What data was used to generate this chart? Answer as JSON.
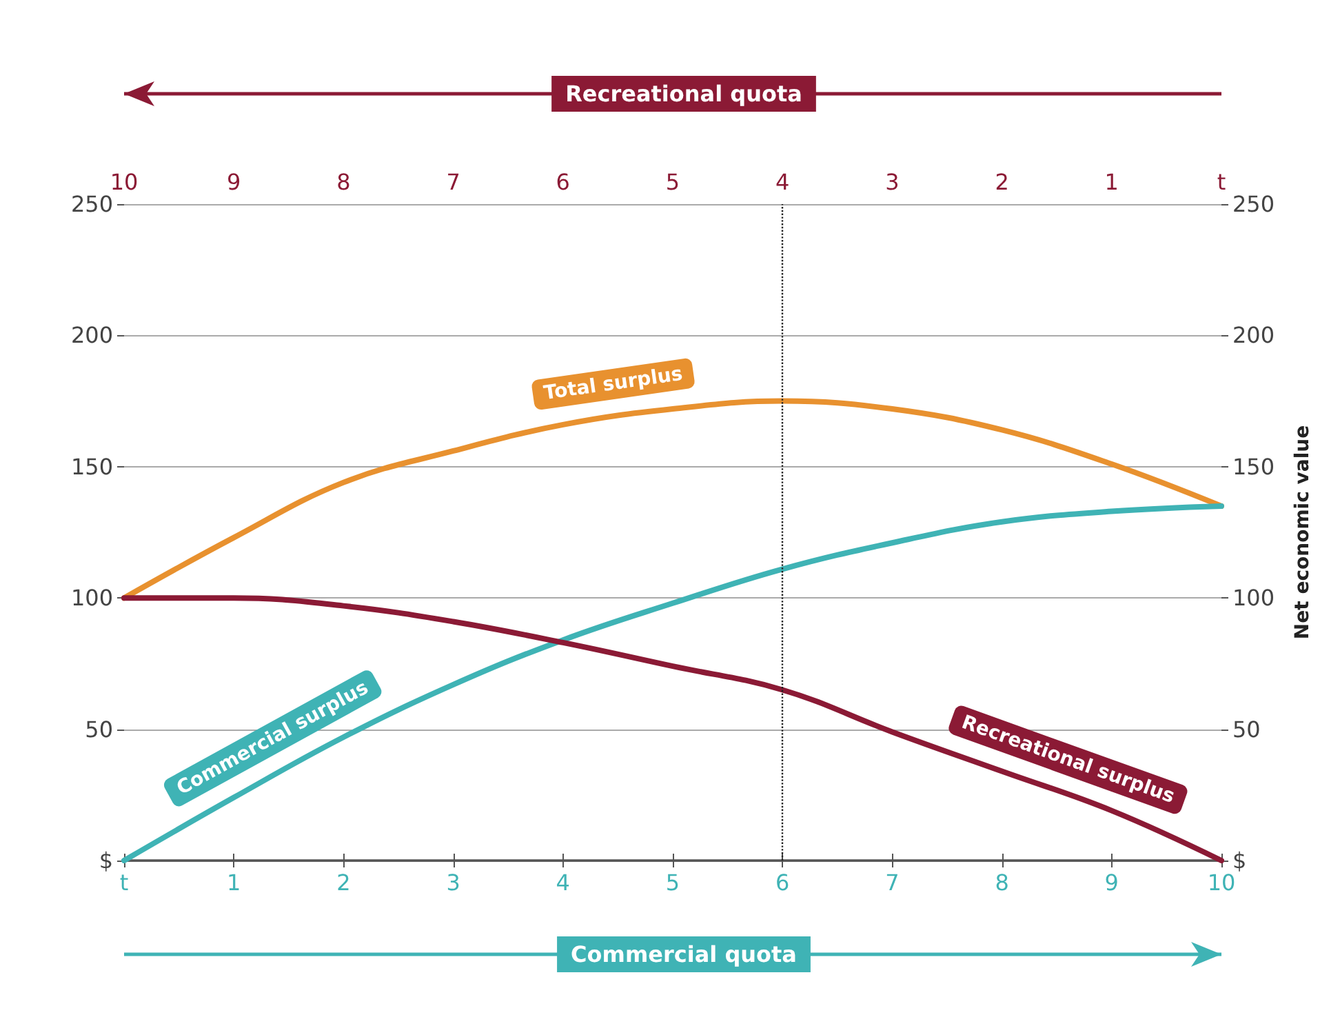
{
  "chart_data": {
    "type": "line",
    "xlabel": "Commercial quota",
    "x2label": "Recreational quota",
    "y2label": "Net economic value",
    "x": [
      0,
      1,
      2,
      3,
      4,
      5,
      6,
      7,
      8,
      9,
      10
    ],
    "series": [
      {
        "name": "Total surplus",
        "color": "#e8912f",
        "values": [
          100,
          123,
          144,
          156,
          166,
          172,
          175,
          172,
          164,
          151,
          135
        ]
      },
      {
        "name": "Commercial surplus",
        "color": "#3fb3b5",
        "values": [
          0,
          24,
          47,
          67,
          84,
          98,
          111,
          121,
          129,
          133,
          135
        ]
      },
      {
        "name": "Recreational surplus",
        "color": "#8b1a35",
        "values": [
          100,
          100,
          97,
          91,
          83,
          74,
          65,
          49,
          34,
          19,
          0
        ]
      }
    ],
    "xlim": [
      0,
      10
    ],
    "xticks": [
      {
        "value": 0,
        "label": "t"
      },
      1,
      2,
      3,
      4,
      5,
      6,
      7,
      8,
      9,
      10
    ],
    "x2lim": [
      10,
      0
    ],
    "x2ticks": [
      10,
      9,
      8,
      7,
      6,
      5,
      4,
      3,
      2,
      1,
      {
        "value": 0,
        "label": "t"
      }
    ],
    "ylim": [
      0,
      250
    ],
    "yticks": [
      {
        "value": 0,
        "label": "$"
      },
      50,
      100,
      150,
      200,
      250
    ],
    "y2lim": [
      0,
      250
    ],
    "y2ticks": [
      {
        "value": 0,
        "label": "$"
      },
      50,
      100,
      150,
      200,
      250
    ],
    "grid": "y",
    "ref_lines": [
      {
        "axis": "x",
        "value": 6,
        "color": "#222222",
        "line_style": "dotted"
      }
    ]
  }
}
